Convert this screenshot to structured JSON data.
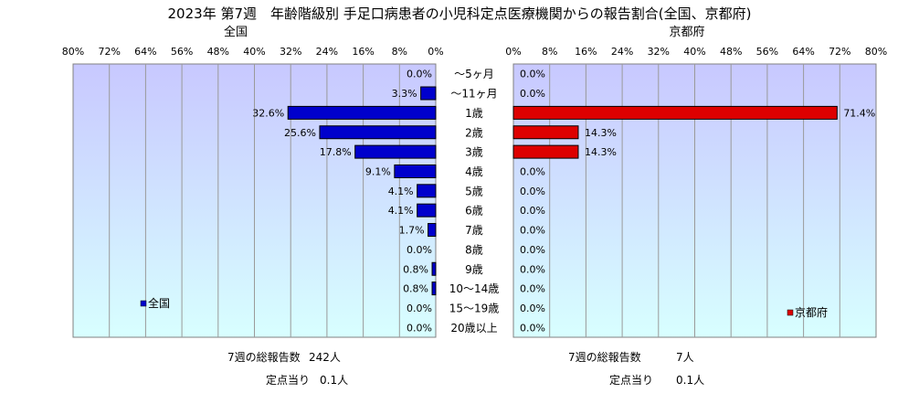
{
  "title": "2023年 第7週　年齢階級別 手足口病患者の小児科定点医療機関からの報告割合(全国、京都府)",
  "colors": {
    "national": "#0000cc",
    "kyoto": "#dd0000",
    "plot_gradient_top": "#c8c8ff",
    "plot_gradient_bottom": "#d8ffff"
  },
  "chart_data": [
    {
      "type": "bar",
      "orientation": "horizontal",
      "direction": "right-to-left",
      "subtitle": "全国",
      "xlim": [
        0,
        80
      ],
      "xticks": [
        "80%",
        "72%",
        "64%",
        "56%",
        "48%",
        "40%",
        "32%",
        "24%",
        "16%",
        "8%",
        "0%"
      ],
      "grid": true,
      "legend": "bottom-left",
      "categories": [
        "～5ヶ月",
        "～11ヶ月",
        "1歳",
        "2歳",
        "3歳",
        "4歳",
        "5歳",
        "6歳",
        "7歳",
        "8歳",
        "9歳",
        "10～14歳",
        "15～19歳",
        "20歳以上"
      ],
      "series": [
        {
          "name": "全国",
          "values": [
            0.0,
            3.3,
            32.6,
            25.6,
            17.8,
            9.1,
            4.1,
            4.1,
            1.7,
            0.0,
            0.8,
            0.8,
            0.0,
            0.0
          ],
          "labels": [
            "0.0%",
            "3.3%",
            "32.6%",
            "25.6%",
            "17.8%",
            "9.1%",
            "4.1%",
            "4.1%",
            "1.7%",
            "0.0%",
            "0.8%",
            "0.8%",
            "0.0%",
            "0.0%"
          ]
        }
      ]
    },
    {
      "type": "bar",
      "orientation": "horizontal",
      "direction": "left-to-right",
      "subtitle": "京都府",
      "xlim": [
        0,
        80
      ],
      "xticks": [
        "0%",
        "8%",
        "16%",
        "24%",
        "32%",
        "40%",
        "48%",
        "56%",
        "64%",
        "72%",
        "80%"
      ],
      "grid": true,
      "legend": "bottom-right",
      "categories": [
        "～5ヶ月",
        "～11ヶ月",
        "1歳",
        "2歳",
        "3歳",
        "4歳",
        "5歳",
        "6歳",
        "7歳",
        "8歳",
        "9歳",
        "10～14歳",
        "15～19歳",
        "20歳以上"
      ],
      "series": [
        {
          "name": "京都府",
          "values": [
            0.0,
            0.0,
            71.4,
            14.3,
            14.3,
            0.0,
            0.0,
            0.0,
            0.0,
            0.0,
            0.0,
            0.0,
            0.0,
            0.0
          ],
          "labels": [
            "0.0%",
            "0.0%",
            "71.4%",
            "14.3%",
            "14.3%",
            "0.0%",
            "0.0%",
            "0.0%",
            "0.0%",
            "0.0%",
            "0.0%",
            "0.0%",
            "0.0%",
            "0.0%"
          ]
        }
      ]
    }
  ],
  "footer": {
    "national": {
      "total_label": "7週の総報告数",
      "total_value": "242人",
      "per_label": "定点当り",
      "per_value": "0.1人"
    },
    "kyoto": {
      "total_label": "7週の総報告数",
      "total_value": "7人",
      "per_label": "定点当り",
      "per_value": "0.1人"
    }
  }
}
